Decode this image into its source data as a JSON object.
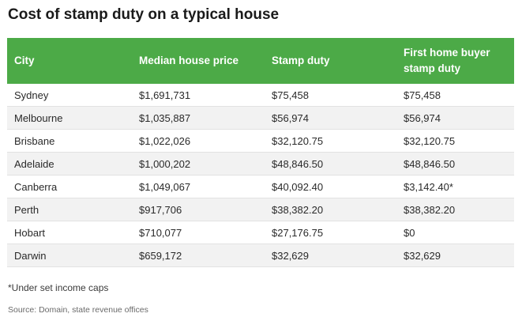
{
  "title": "Cost of stamp duty on a typical house",
  "table": {
    "headers": [
      "City",
      "Median house price",
      "Stamp duty",
      "First home buyer stamp duty"
    ],
    "rows": [
      [
        "Sydney",
        "$1,691,731",
        "$75,458",
        "$75,458"
      ],
      [
        "Melbourne",
        "$1,035,887",
        "$56,974",
        "$56,974"
      ],
      [
        "Brisbane",
        "$1,022,026",
        "$32,120.75",
        "$32,120.75"
      ],
      [
        "Adelaide",
        "$1,000,202",
        "$48,846.50",
        "$48,846.50"
      ],
      [
        "Canberra",
        "$1,049,067",
        "$40,092.40",
        "$3,142.40*"
      ],
      [
        "Perth",
        "$917,706",
        "$38,382.20",
        "$38,382.20"
      ],
      [
        "Hobart",
        "$710,077",
        "$27,176.75",
        "$0"
      ],
      [
        "Darwin",
        "$659,172",
        "$32,629",
        "$32,629"
      ]
    ]
  },
  "footnote": "*Under set income caps",
  "source": "Source: Domain, state revenue offices",
  "colors": {
    "header_bg": "#4caa47",
    "header_text": "#ffffff",
    "row_alt_bg": "#f2f2f2"
  }
}
